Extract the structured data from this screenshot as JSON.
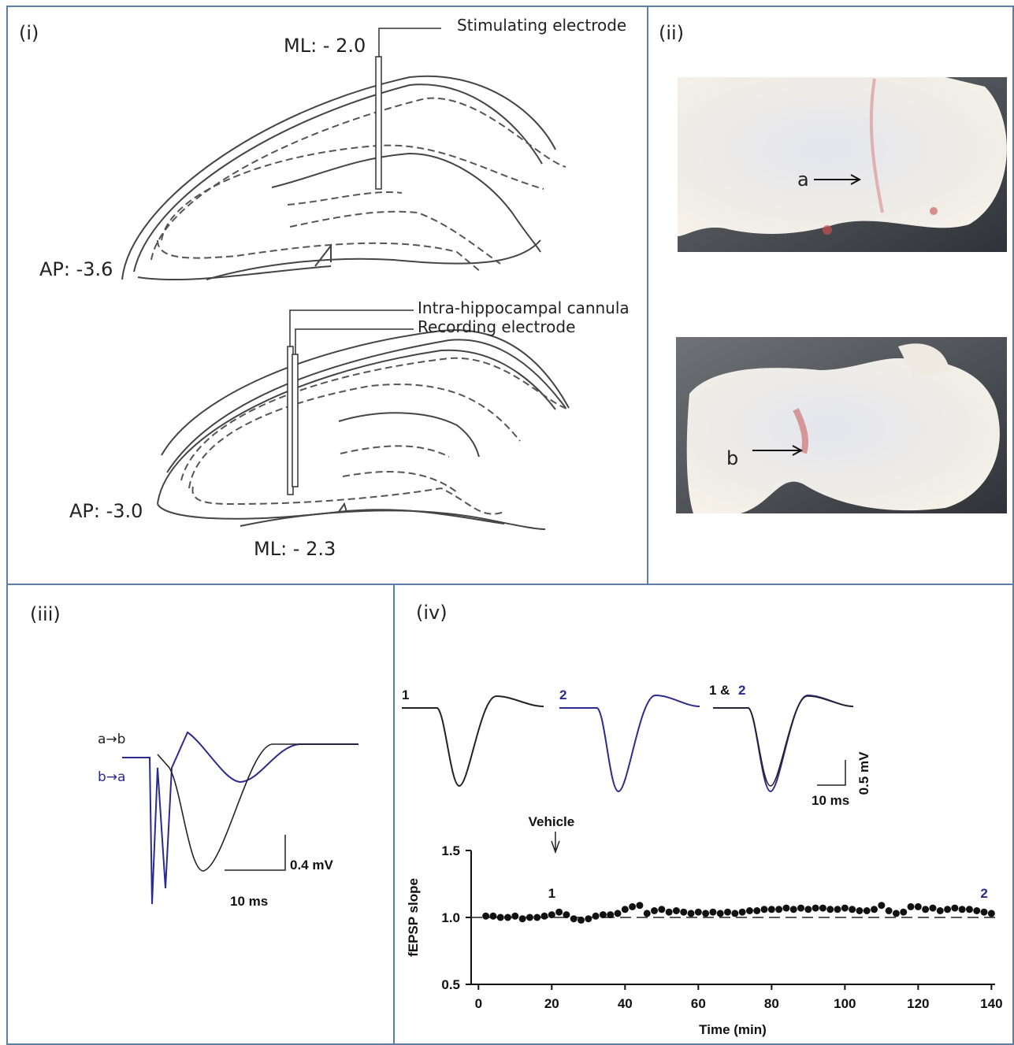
{
  "panel_i": {
    "label": "(i)",
    "stim_ml": "ML: - 2.0",
    "stim_label": "Stimulating electrode",
    "ap_top": "AP: -3.6",
    "cannula_label": "Intra-hippocampal cannula",
    "recording_label": "Recording electrode",
    "ap_bottom": "AP: -3.0",
    "ml_bottom": "ML: - 2.3"
  },
  "panel_ii": {
    "label": "(ii)",
    "marker_a": "a",
    "marker_b": "b"
  },
  "panel_iii": {
    "label": "(iii)",
    "trace_ab": "a→b",
    "trace_ba": "b→a",
    "scale_y": "0.4 mV",
    "scale_x": "10 ms"
  },
  "panel_iv": {
    "label": "(iv)",
    "trace_1": "1",
    "trace_2": "2",
    "trace_both": "1 &",
    "trace_both_2": "2",
    "scale_y": "0.5 mV",
    "scale_x": "10 ms"
  },
  "chart_data": {
    "type": "scatter",
    "x_label": "Time (min)",
    "y_label": "fEPSP slope",
    "color": "#111111",
    "x": [
      2,
      4,
      6,
      8,
      10,
      12,
      14,
      16,
      18,
      20,
      22,
      24,
      26,
      28,
      30,
      32,
      34,
      36,
      38,
      40,
      42,
      44,
      46,
      48,
      50,
      52,
      54,
      56,
      58,
      60,
      62,
      64,
      66,
      68,
      70,
      72,
      74,
      76,
      78,
      80,
      82,
      84,
      86,
      88,
      90,
      92,
      94,
      96,
      98,
      100,
      102,
      104,
      106,
      108,
      110,
      112,
      114,
      116,
      118,
      120,
      122,
      124,
      126,
      128,
      130,
      132,
      134,
      136,
      138,
      140
    ],
    "values": [
      1.01,
      1.01,
      1.0,
      1.0,
      1.01,
      0.99,
      1.0,
      1.0,
      1.01,
      1.02,
      1.04,
      1.02,
      0.99,
      0.98,
      0.99,
      1.01,
      1.02,
      1.02,
      1.03,
      1.06,
      1.08,
      1.09,
      1.03,
      1.05,
      1.06,
      1.04,
      1.05,
      1.04,
      1.03,
      1.04,
      1.03,
      1.04,
      1.03,
      1.04,
      1.03,
      1.04,
      1.05,
      1.05,
      1.06,
      1.06,
      1.06,
      1.07,
      1.06,
      1.07,
      1.06,
      1.07,
      1.07,
      1.06,
      1.06,
      1.07,
      1.06,
      1.05,
      1.05,
      1.06,
      1.09,
      1.05,
      1.03,
      1.04,
      1.08,
      1.08,
      1.06,
      1.07,
      1.05,
      1.06,
      1.07,
      1.06,
      1.06,
      1.05,
      1.04,
      1.03
    ],
    "xlim": [
      -2,
      141
    ],
    "ylim": [
      0.5,
      1.5
    ],
    "xticks": [
      0,
      20,
      40,
      60,
      80,
      100,
      120,
      140
    ],
    "yticks": [
      0.5,
      {
        "value": 1,
        "label": "1.0"
      },
      1.5
    ],
    "reference_line": 1,
    "annotations": [
      {
        "text": "1",
        "x": 20,
        "color": "#111111"
      },
      {
        "text": "2",
        "x": 138,
        "color": "#2b2b8f"
      }
    ],
    "event": {
      "text": "Vehicle",
      "x": 21
    }
  }
}
